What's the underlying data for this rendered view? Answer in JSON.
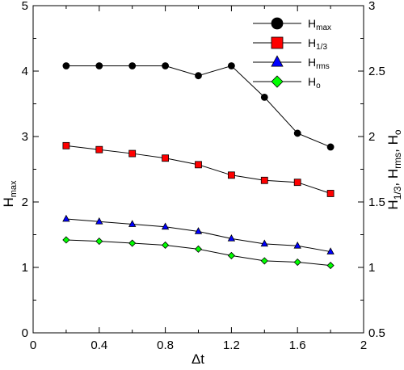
{
  "chart_data": {
    "type": "line",
    "xlabel": "Δt",
    "ylabel_left": "H_max",
    "ylabel_right": "H_1/3, H_rms, H_o",
    "xlim": [
      0,
      2
    ],
    "ylim_left": [
      0,
      5
    ],
    "ylim_right": [
      0.5,
      3
    ],
    "x_ticks": [
      "0",
      "0.4",
      "0.8",
      "1.2",
      "1.6",
      "2"
    ],
    "y_ticks_left": [
      "0",
      "1",
      "2",
      "3",
      "4",
      "5"
    ],
    "y_ticks_right": [
      "0.5",
      "1",
      "1.5",
      "2",
      "2.5",
      "3"
    ],
    "grid": false,
    "legend_position": "top-right",
    "x": [
      0.2,
      0.4,
      0.6,
      0.8,
      1.0,
      1.2,
      1.4,
      1.6,
      1.8
    ],
    "series": [
      {
        "name": "H_max",
        "label_main": "H",
        "label_sub": "max",
        "axis": "left",
        "marker": "circle",
        "color": "#000000",
        "values": [
          4.08,
          4.08,
          4.08,
          4.08,
          3.93,
          4.08,
          3.6,
          3.05,
          2.84
        ]
      },
      {
        "name": "H_1/3",
        "label_main": "H",
        "label_sub": "1/3",
        "axis": "right",
        "marker": "square",
        "color": "#ff0000",
        "values": [
          1.93,
          1.9,
          1.87,
          1.835,
          1.785,
          1.705,
          1.665,
          1.65,
          1.565
        ]
      },
      {
        "name": "H_rms",
        "label_main": "H",
        "label_sub": "rms",
        "axis": "right",
        "marker": "triangle",
        "color": "#0000ff",
        "values": [
          1.37,
          1.35,
          1.33,
          1.31,
          1.275,
          1.22,
          1.18,
          1.165,
          1.12
        ]
      },
      {
        "name": "H_o",
        "label_main": "H",
        "label_sub": "o",
        "axis": "right",
        "marker": "diamond",
        "color": "#00ff00",
        "values": [
          1.21,
          1.2,
          1.185,
          1.17,
          1.14,
          1.09,
          1.05,
          1.04,
          1.015
        ]
      }
    ]
  }
}
